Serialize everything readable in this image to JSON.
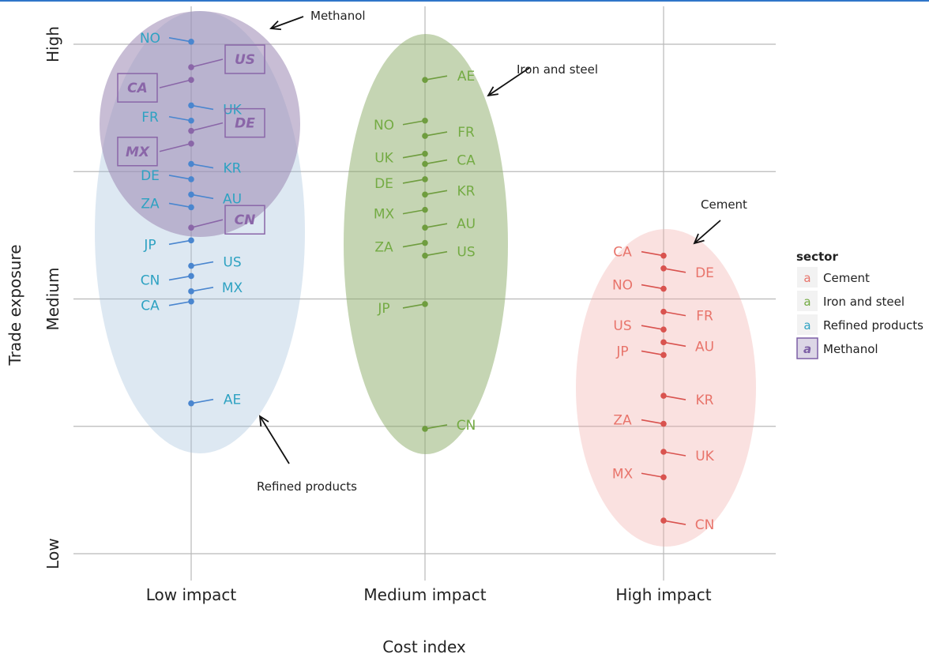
{
  "chart_data": {
    "type": "scatter",
    "xlabel": "Cost index",
    "ylabel": "Trade exposure",
    "x_categories": [
      "Low impact",
      "Medium impact",
      "High impact"
    ],
    "y_categories": [
      "Low",
      "Medium",
      "High"
    ],
    "ylim": [
      0,
      2
    ],
    "grid": true,
    "legend": {
      "title": "sector",
      "position": "right",
      "key_glyph": "a",
      "entries": [
        {
          "name": "Cement",
          "color": "#e8746b"
        },
        {
          "name": "Iron and steel",
          "color": "#74ab44"
        },
        {
          "name": "Refined products",
          "color": "#2ea2c2"
        },
        {
          "name": "Methanol",
          "color": "#7d5fa6"
        }
      ]
    },
    "ellipse_colors": {
      "Refined products": "#9dbcd9",
      "Methanol": "#9b86b3",
      "Iron and steel": "#8bab67",
      "Cement": "#f0aaa6"
    },
    "point_colors": {
      "Refined products": "#4a86cf",
      "Methanol": "#8a66a8",
      "Iron and steel": "#6f9d3f",
      "Cement": "#d9534f"
    },
    "annotations": [
      "Methanol",
      "Iron and steel",
      "Cement",
      "Refined products"
    ],
    "series": [
      {
        "name": "Refined products",
        "x": "Low impact",
        "points": [
          {
            "label": "NO",
            "y": 2.01,
            "side": "left"
          },
          {
            "label": "UK",
            "y": 1.76,
            "side": "right"
          },
          {
            "label": "FR",
            "y": 1.7,
            "side": "left"
          },
          {
            "label": "KR",
            "y": 1.53,
            "side": "right"
          },
          {
            "label": "DE",
            "y": 1.47,
            "side": "left"
          },
          {
            "label": "AU",
            "y": 1.41,
            "side": "right"
          },
          {
            "label": "ZA",
            "y": 1.36,
            "side": "left"
          },
          {
            "label": "JP",
            "y": 1.23,
            "side": "left"
          },
          {
            "label": "US",
            "y": 1.13,
            "side": "right"
          },
          {
            "label": "CN",
            "y": 1.09,
            "side": "left"
          },
          {
            "label": "MX",
            "y": 1.03,
            "side": "right"
          },
          {
            "label": "CA",
            "y": 0.99,
            "side": "left"
          },
          {
            "label": "AE",
            "y": 0.59,
            "side": "right"
          }
        ]
      },
      {
        "name": "Methanol",
        "x": "Low impact",
        "points": [
          {
            "label": "US",
            "y": 1.91,
            "side": "right"
          },
          {
            "label": "CA",
            "y": 1.86,
            "side": "left"
          },
          {
            "label": "DE",
            "y": 1.66,
            "side": "right"
          },
          {
            "label": "MX",
            "y": 1.61,
            "side": "left"
          },
          {
            "label": "CN",
            "y": 1.28,
            "side": "right"
          }
        ]
      },
      {
        "name": "Iron and steel",
        "x": "Medium impact",
        "points": [
          {
            "label": "AE",
            "y": 1.86,
            "side": "right"
          },
          {
            "label": "NO",
            "y": 1.7,
            "side": "left"
          },
          {
            "label": "FR",
            "y": 1.64,
            "side": "right"
          },
          {
            "label": "UK",
            "y": 1.57,
            "side": "left"
          },
          {
            "label": "CA",
            "y": 1.53,
            "side": "right"
          },
          {
            "label": "DE",
            "y": 1.47,
            "side": "left"
          },
          {
            "label": "KR",
            "y": 1.41,
            "side": "right"
          },
          {
            "label": "MX",
            "y": 1.35,
            "side": "left"
          },
          {
            "label": "AU",
            "y": 1.28,
            "side": "right"
          },
          {
            "label": "ZA",
            "y": 1.22,
            "side": "left"
          },
          {
            "label": "US",
            "y": 1.17,
            "side": "right"
          },
          {
            "label": "JP",
            "y": 0.98,
            "side": "left"
          },
          {
            "label": "CN",
            "y": 0.49,
            "side": "right"
          }
        ]
      },
      {
        "name": "Cement",
        "x": "High impact",
        "points": [
          {
            "label": "CA",
            "y": 1.17,
            "side": "left"
          },
          {
            "label": "DE",
            "y": 1.12,
            "side": "right"
          },
          {
            "label": "NO",
            "y": 1.04,
            "side": "left"
          },
          {
            "label": "FR",
            "y": 0.95,
            "side": "right"
          },
          {
            "label": "US",
            "y": 0.88,
            "side": "left"
          },
          {
            "label": "AU",
            "y": 0.83,
            "side": "right"
          },
          {
            "label": "JP",
            "y": 0.78,
            "side": "left"
          },
          {
            "label": "KR",
            "y": 0.62,
            "side": "right"
          },
          {
            "label": "ZA",
            "y": 0.51,
            "side": "left"
          },
          {
            "label": "UK",
            "y": 0.4,
            "side": "right"
          },
          {
            "label": "MX",
            "y": 0.3,
            "side": "left"
          },
          {
            "label": "CN",
            "y": 0.13,
            "side": "right"
          }
        ]
      }
    ]
  }
}
